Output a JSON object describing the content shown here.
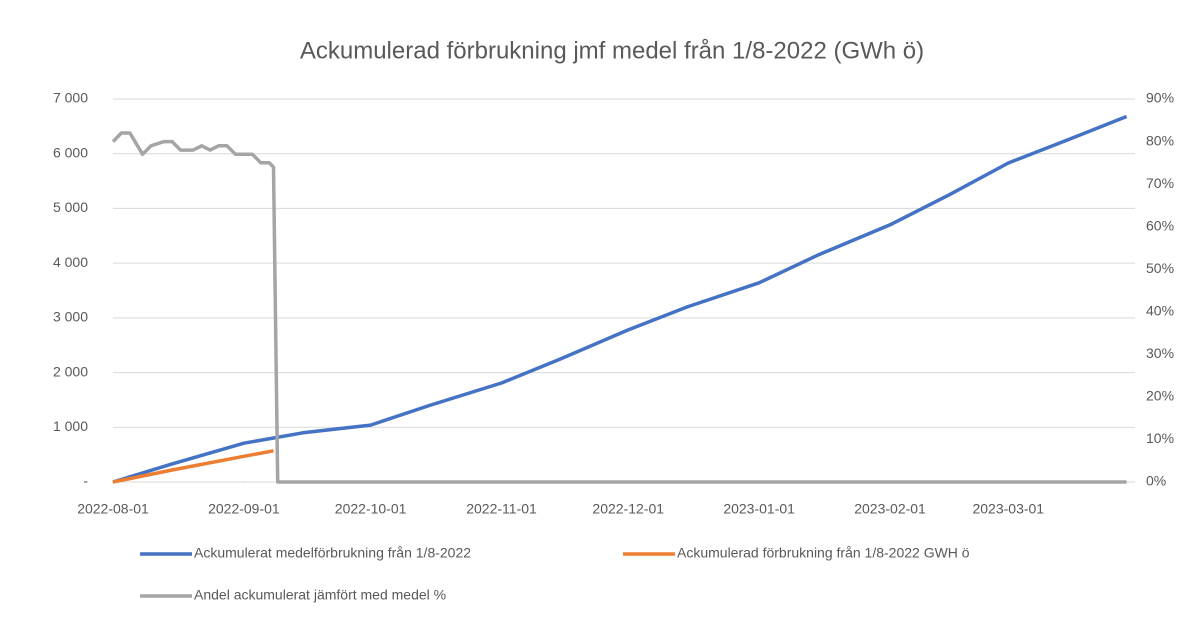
{
  "chart_data": {
    "type": "line",
    "title": "Ackumulerad förbrukning jmf medel från 1/8-2022 (GWh ö)",
    "xlim": [
      "2022-08-01",
      "2023-03-31"
    ],
    "xticks": [
      "2022-08-01",
      "2022-09-01",
      "2022-10-01",
      "2022-11-01",
      "2022-12-01",
      "2023-01-01",
      "2023-02-01",
      "2023-03-01"
    ],
    "ylim": [
      0,
      7000
    ],
    "yticks": [
      {
        "value": 0,
        "label": "-"
      },
      {
        "value": 1000,
        "label": "1 000"
      },
      {
        "value": 2000,
        "label": "2 000"
      },
      {
        "value": 3000,
        "label": "3 000"
      },
      {
        "value": 4000,
        "label": "4 000"
      },
      {
        "value": 5000,
        "label": "5 000"
      },
      {
        "value": 6000,
        "label": "6 000"
      },
      {
        "value": 7000,
        "label": "7 000"
      }
    ],
    "y2lim": [
      0,
      90
    ],
    "y2ticks": [
      {
        "value": 0,
        "label": "0%"
      },
      {
        "value": 10,
        "label": "10%"
      },
      {
        "value": 20,
        "label": "20%"
      },
      {
        "value": 30,
        "label": "30%"
      },
      {
        "value": 40,
        "label": "40%"
      },
      {
        "value": 50,
        "label": "50%"
      },
      {
        "value": 60,
        "label": "60%"
      },
      {
        "value": 70,
        "label": "70%"
      },
      {
        "value": 80,
        "label": "80%"
      },
      {
        "value": 90,
        "label": "90%"
      }
    ],
    "grid": true,
    "legend": "bottom",
    "series": [
      {
        "name": "Ackumulerat medelförbrukning från 1/8-2022",
        "color": "#4472c4",
        "x": [
          "2022-08-01",
          "2022-08-15",
          "2022-09-01",
          "2022-09-15",
          "2022-10-01",
          "2022-10-15",
          "2022-11-01",
          "2022-11-15",
          "2022-12-01",
          "2022-12-15",
          "2023-01-01",
          "2023-01-15",
          "2023-02-01",
          "2023-02-15",
          "2023-03-01",
          "2023-03-15",
          "2023-03-29"
        ],
        "values": [
          0,
          330,
          710,
          900,
          1040,
          1400,
          1810,
          2250,
          2780,
          3200,
          3640,
          4150,
          4700,
          5250,
          5830,
          6250,
          6680
        ]
      },
      {
        "name": "Ackumulerad förbrukning från 1/8-2022 GWH ö",
        "color": "#ed7d31",
        "x": [
          "2022-08-01",
          "2022-08-15",
          "2022-09-01",
          "2022-09-08"
        ],
        "values": [
          0,
          220,
          470,
          570
        ]
      },
      {
        "name": "Andel ackumulerat jämfört med medel %",
        "color": "#a5a5a5",
        "axis": "y2",
        "x": [
          "2022-08-01",
          "2022-08-03",
          "2022-08-05",
          "2022-08-08",
          "2022-08-10",
          "2022-08-13",
          "2022-08-15",
          "2022-08-17",
          "2022-08-20",
          "2022-08-22",
          "2022-08-24",
          "2022-08-26",
          "2022-08-28",
          "2022-08-30",
          "2022-09-01",
          "2022-09-03",
          "2022-09-05",
          "2022-09-07",
          "2022-09-08",
          "2022-09-09",
          "2023-03-29"
        ],
        "values": [
          80,
          82,
          82,
          77,
          79,
          80,
          80,
          78,
          78,
          79,
          78,
          79,
          79,
          77,
          77,
          77,
          75,
          75,
          74,
          0,
          0
        ]
      }
    ]
  }
}
